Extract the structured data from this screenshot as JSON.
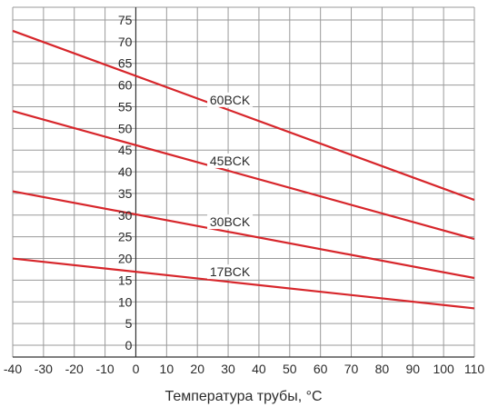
{
  "chart_data": {
    "type": "line",
    "title": "",
    "xlabel": "Температура трубы, °C",
    "ylabel": "",
    "xlim": [
      -40,
      110
    ],
    "ylim": [
      0,
      75
    ],
    "x_ticks": [
      -40,
      -30,
      -20,
      -10,
      0,
      10,
      20,
      30,
      40,
      50,
      60,
      70,
      80,
      90,
      100,
      110
    ],
    "y_ticks": [
      0,
      5,
      10,
      15,
      20,
      25,
      30,
      35,
      40,
      45,
      50,
      55,
      60,
      65,
      70,
      75
    ],
    "grid": true,
    "line_color": "#d7262b",
    "series": [
      {
        "name": "60BCK",
        "x": [
          -40,
          110
        ],
        "y": [
          72.5,
          33.5
        ],
        "label_at": 30
      },
      {
        "name": "45BCK",
        "x": [
          -40,
          110
        ],
        "y": [
          54.0,
          24.5
        ],
        "label_at": 30
      },
      {
        "name": "30BCK",
        "x": [
          -40,
          110
        ],
        "y": [
          35.5,
          15.5
        ],
        "label_at": 30
      },
      {
        "name": "17BCK",
        "x": [
          -40,
          110
        ],
        "y": [
          20.0,
          8.5
        ],
        "label_at": 30
      }
    ]
  }
}
